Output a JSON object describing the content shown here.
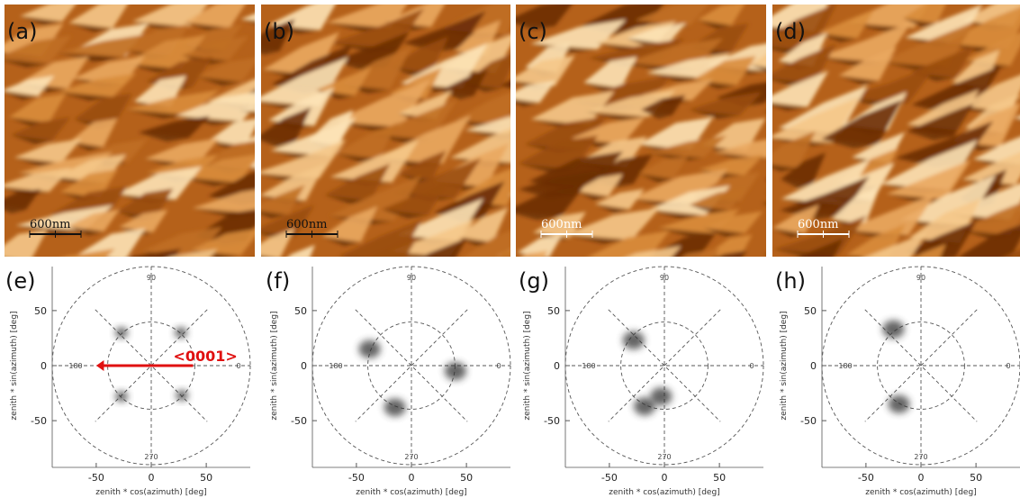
{
  "afm_panels": [
    {
      "label": "(a)",
      "scale_bar": "600nm"
    },
    {
      "label": "(b)",
      "scale_bar": "600nm"
    },
    {
      "label": "(c)",
      "scale_bar": "600nm"
    },
    {
      "label": "(d)",
      "scale_bar": "600nm"
    }
  ],
  "polar_plots": [
    {
      "label": "(e)",
      "clusters": [
        {
          "x": -27,
          "y": 30
        },
        {
          "x": 27,
          "y": 30
        },
        {
          "x": -27,
          "y": -28
        },
        {
          "x": 28,
          "y": -27
        }
      ]
    },
    {
      "label": "(f)",
      "clusters": [
        {
          "x": -38,
          "y": 15
        },
        {
          "x": -15,
          "y": -38
        },
        {
          "x": 40,
          "y": -5
        }
      ]
    },
    {
      "label": "(g)",
      "clusters": [
        {
          "x": -28,
          "y": 23
        },
        {
          "x": -18,
          "y": -37
        },
        {
          "x": -3,
          "y": -28
        }
      ]
    },
    {
      "label": "(h)",
      "clusters": [
        {
          "x": -25,
          "y": 33
        },
        {
          "x": -20,
          "y": -35
        }
      ]
    }
  ],
  "polar_labels": {
    "top": "90",
    "left": "180",
    "right": "0",
    "bottom": "270"
  },
  "xlim": [
    -90,
    90
  ],
  "ylim": [
    -90,
    90
  ],
  "xticks": [
    -50,
    0,
    50
  ],
  "yticks": [
    50,
    0,
    -50
  ],
  "xlabel": "zenith * cos(azimuth) [deg]",
  "ylabel": "zenith * sin(azimuth) [deg]",
  "annotation": "<0001>"
}
